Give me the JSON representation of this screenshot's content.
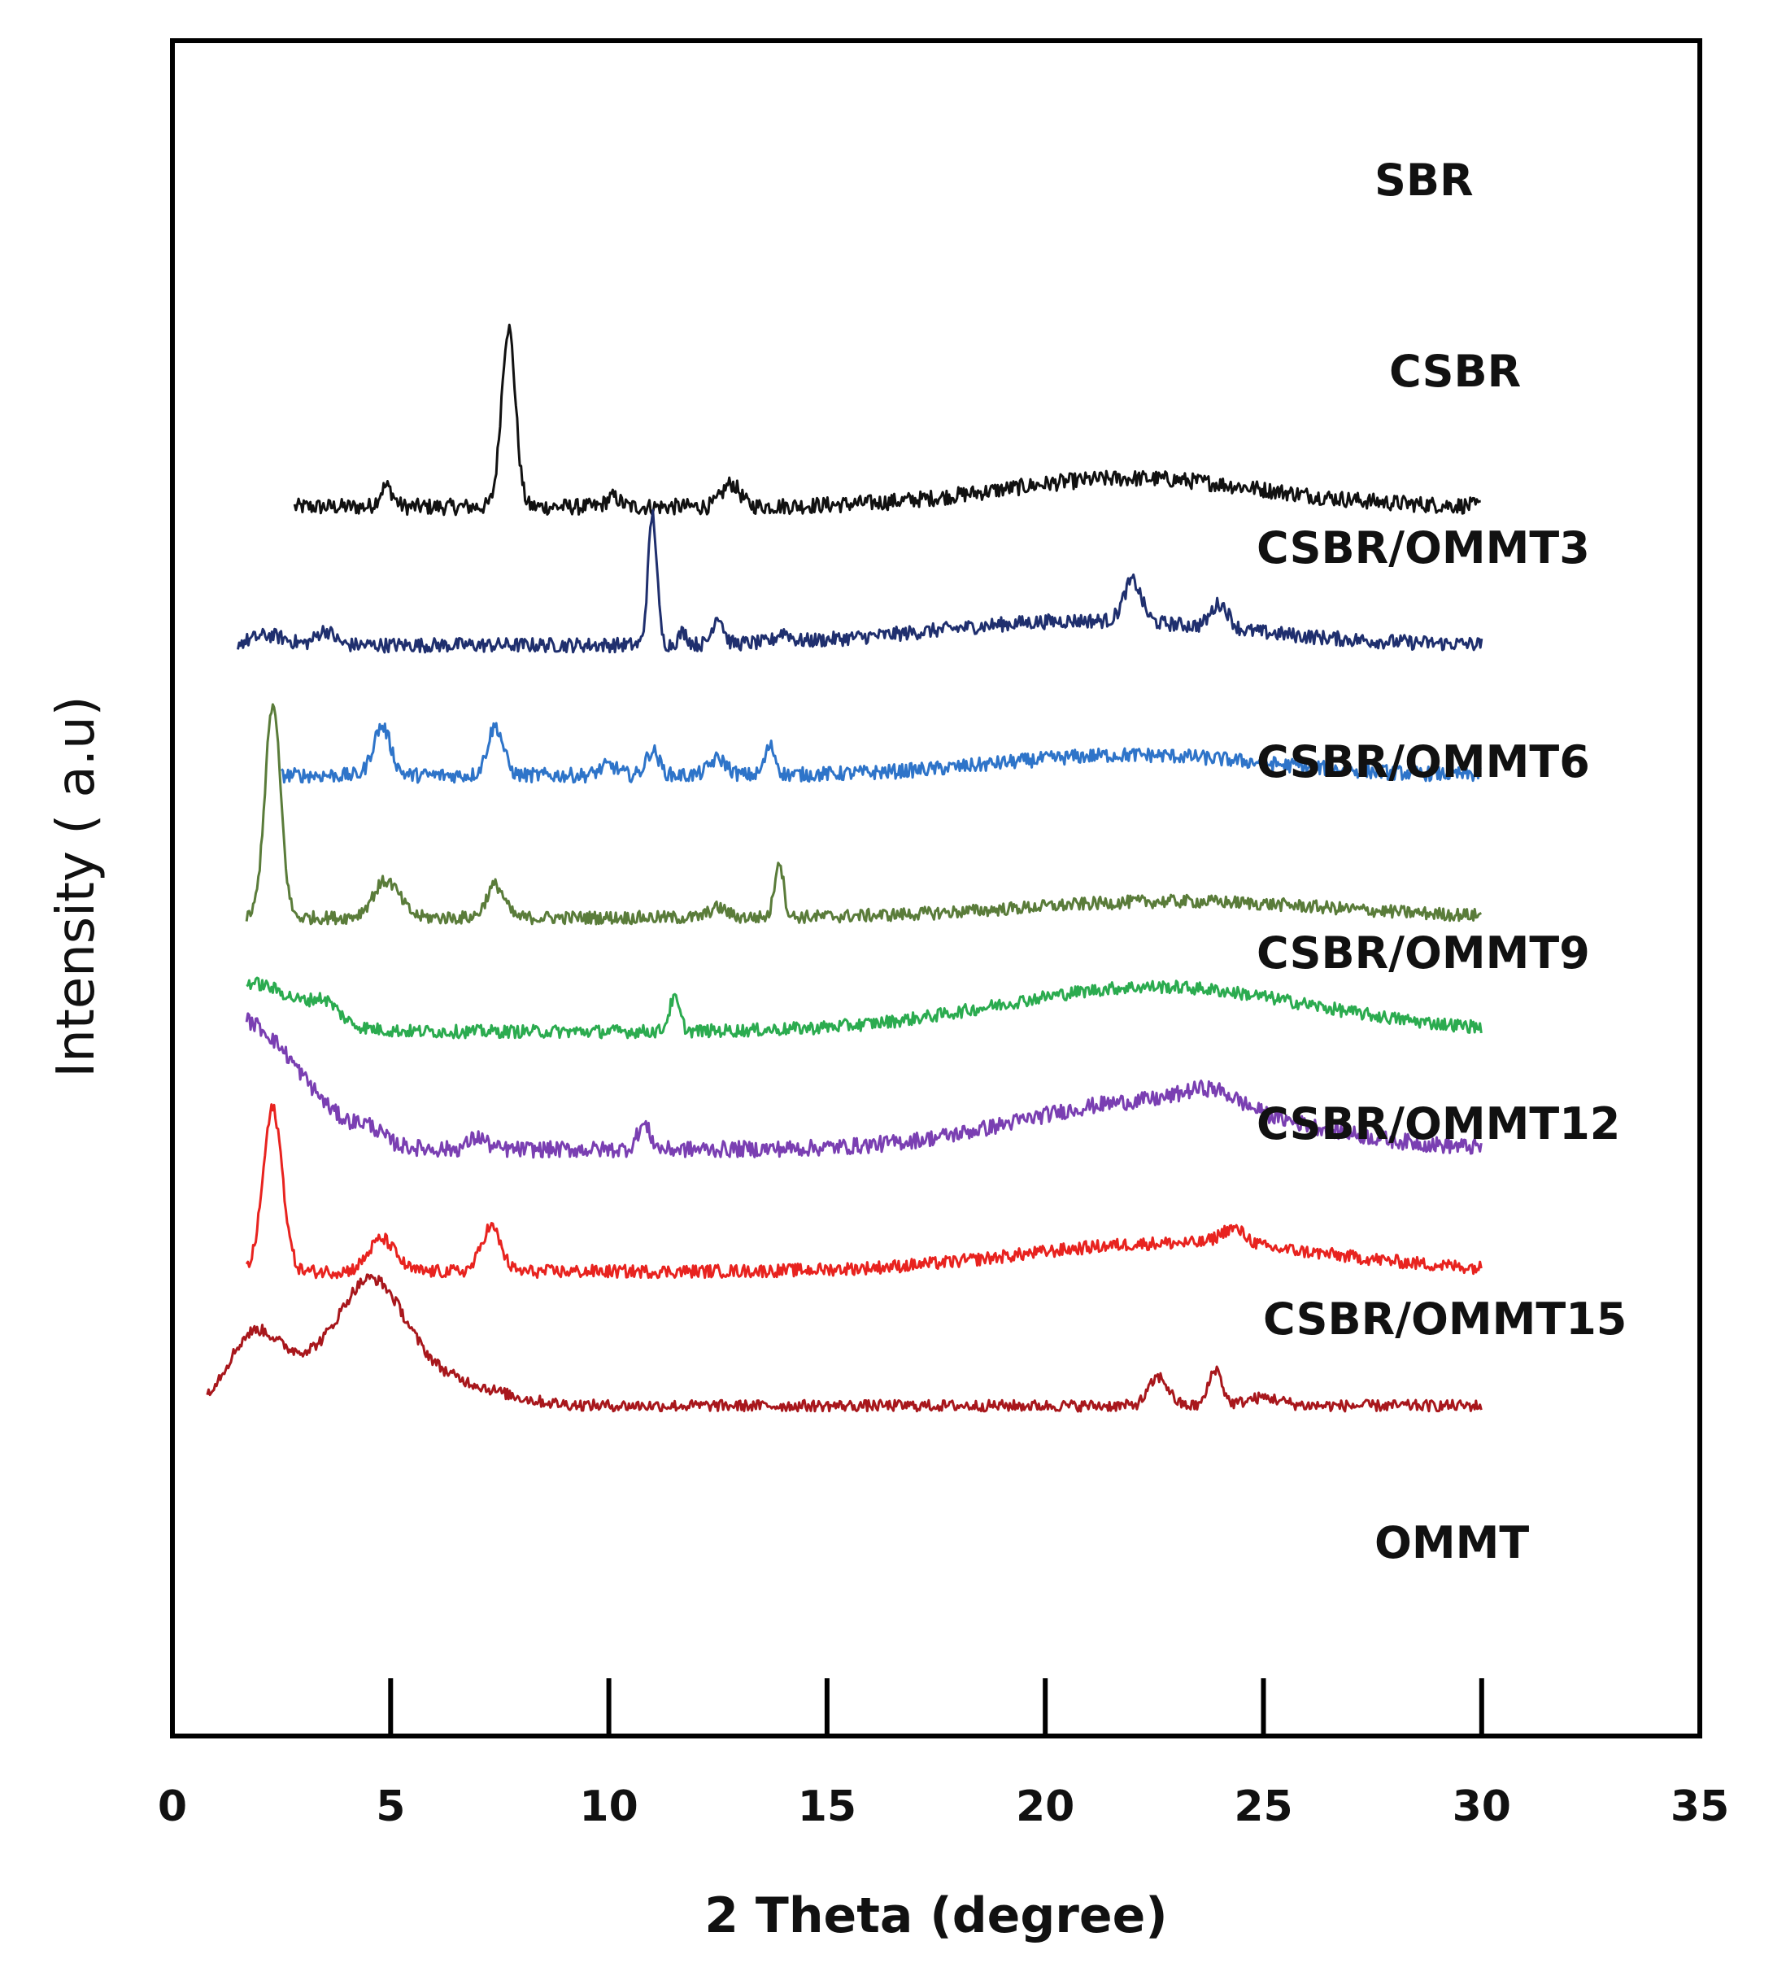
{
  "chart_data": {
    "type": "line",
    "title": "",
    "xlabel": "2 Theta (degree)",
    "ylabel": "Intensity ( a.u)",
    "xlim": [
      0,
      35
    ],
    "x_ticks": [
      0,
      5,
      10,
      15,
      20,
      25,
      30,
      35
    ],
    "grid": false,
    "legend": "labels beside each trace, right side",
    "series": [
      {
        "name": "SBR",
        "color": "#111111",
        "x_range": [
          2.8,
          30
        ],
        "baseline": 7.9,
        "noise": 0.1,
        "peaks": [
          [
            4.9,
            0.25,
            0.15
          ],
          [
            7.7,
            2.2,
            0.16
          ],
          [
            10.1,
            0.12,
            0.15
          ],
          [
            12.8,
            0.28,
            0.2
          ],
          [
            22,
            0.35,
            3.0
          ]
        ]
      },
      {
        "name": "CSBR",
        "color": "#1f2f6e",
        "x_range": [
          1.5,
          30
        ],
        "baseline": 6.2,
        "noise": 0.09,
        "peaks": [
          [
            2.2,
            0.12,
            0.4
          ],
          [
            3.5,
            0.18,
            0.2
          ],
          [
            11.0,
            1.6,
            0.1
          ],
          [
            11.7,
            0.15,
            0.1
          ],
          [
            12.5,
            0.35,
            0.12
          ],
          [
            14.0,
            0.12,
            0.15
          ],
          [
            22.0,
            0.5,
            0.2
          ],
          [
            24.0,
            0.3,
            0.2
          ],
          [
            21,
            0.3,
            3.5
          ]
        ]
      },
      {
        "name": "CSBR/OMMT3",
        "color": "#2e74c9",
        "x_range": [
          2.5,
          30
        ],
        "baseline": 4.6,
        "noise": 0.09,
        "peaks": [
          [
            4.8,
            0.6,
            0.2
          ],
          [
            7.4,
            0.6,
            0.18
          ],
          [
            10.0,
            0.12,
            0.2
          ],
          [
            11.0,
            0.3,
            0.15
          ],
          [
            12.5,
            0.2,
            0.2
          ],
          [
            13.7,
            0.35,
            0.12
          ],
          [
            22,
            0.25,
            3.0
          ]
        ]
      },
      {
        "name": "CSBR/OMMT6",
        "color": "#5a7c3a",
        "x_range": [
          1.7,
          30
        ],
        "baseline": 2.85,
        "noise": 0.08,
        "peaks": [
          [
            2.3,
            2.6,
            0.18
          ],
          [
            4.9,
            0.45,
            0.3
          ],
          [
            7.4,
            0.4,
            0.2
          ],
          [
            12.5,
            0.12,
            0.2
          ],
          [
            13.9,
            0.7,
            0.1
          ],
          [
            23,
            0.2,
            3.5
          ]
        ]
      },
      {
        "name": "CSBR/OMMT9",
        "color": "#2bab4f",
        "x_range": [
          1.7,
          30
        ],
        "baseline": 1.45,
        "noise": 0.08,
        "peaks": [
          [
            1.7,
            0.6,
            1.2
          ],
          [
            3.5,
            0.2,
            0.3
          ],
          [
            11.5,
            0.4,
            0.12
          ],
          [
            22.5,
            0.55,
            3.5
          ]
        ]
      },
      {
        "name": "CSBR/OMMT12",
        "color": "#7a3fb2",
        "x_range": [
          1.7,
          30
        ],
        "baseline": 0.0,
        "noise": 0.1,
        "peaks": [
          [
            1.5,
            1.6,
            1.4
          ],
          [
            4.5,
            0.15,
            0.3
          ],
          [
            7.0,
            0.15,
            0.2
          ],
          [
            10.8,
            0.3,
            0.15
          ],
          [
            22.5,
            0.6,
            3.0
          ],
          [
            23.8,
            0.2,
            0.6
          ]
        ]
      },
      {
        "name": "CSBR/OMMT15",
        "color": "#e8231f",
        "x_range": [
          1.7,
          30
        ],
        "baseline": -1.5,
        "noise": 0.08,
        "peaks": [
          [
            2.3,
            2.0,
            0.22
          ],
          [
            4.8,
            0.4,
            0.3
          ],
          [
            7.3,
            0.55,
            0.22
          ],
          [
            23,
            0.35,
            3.5
          ],
          [
            24.3,
            0.2,
            0.3
          ]
        ]
      },
      {
        "name": "OMMT",
        "color": "#a8171c",
        "x_range": [
          0.8,
          30
        ],
        "baseline": -3.15,
        "noise": 0.07,
        "peaks": [
          [
            1.9,
            0.9,
            0.6
          ],
          [
            3.0,
            0.25,
            0.5
          ],
          [
            4.5,
            1.45,
            0.8
          ],
          [
            6.2,
            0.3,
            1.2
          ],
          [
            22.6,
            0.35,
            0.22
          ],
          [
            23.9,
            0.45,
            0.15
          ],
          [
            25.0,
            0.1,
            0.4
          ]
        ]
      }
    ]
  }
}
